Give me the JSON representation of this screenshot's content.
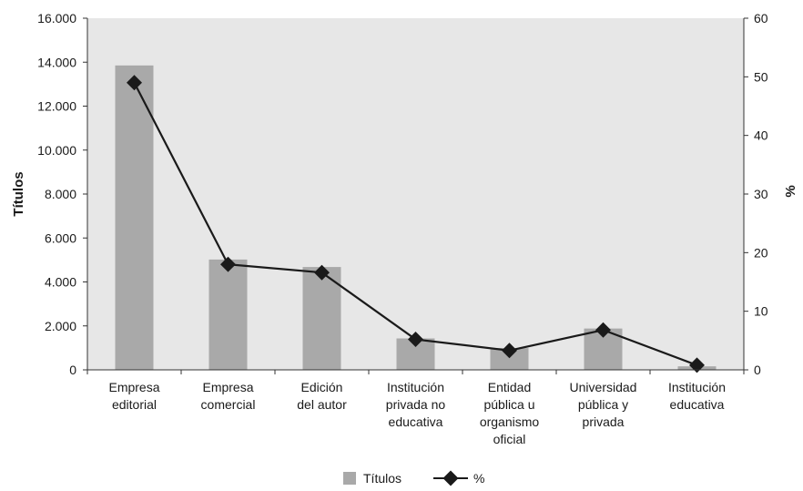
{
  "chart_data": {
    "type": "bar",
    "categories": [
      [
        "Empresa",
        "editorial"
      ],
      [
        "Empresa",
        "comercial"
      ],
      [
        "Edición",
        "del autor"
      ],
      [
        "Institución",
        "privada no",
        "educativa"
      ],
      [
        "Entidad",
        "pública u",
        "organismo",
        "oficial"
      ],
      [
        "Universidad",
        "pública y",
        "privada"
      ],
      [
        "Institución",
        "educativa"
      ]
    ],
    "series": [
      {
        "name": "Títulos",
        "type": "bar",
        "axis": "left",
        "values": [
          13850,
          5020,
          4680,
          1430,
          990,
          1880,
          160
        ]
      },
      {
        "name": "%",
        "type": "line",
        "axis": "right",
        "values": [
          49.0,
          18.0,
          16.6,
          5.2,
          3.3,
          6.8,
          0.8
        ]
      }
    ],
    "ylabel": "Títulos",
    "y2label": "%",
    "ylim": [
      0,
      16000
    ],
    "y2lim": [
      0,
      60
    ],
    "yticks": [
      "0",
      "2.000",
      "4.000",
      "6.000",
      "8.000",
      "10.000",
      "12.000",
      "14.000",
      "16.000"
    ],
    "y2ticks": [
      "0",
      "10",
      "20",
      "30",
      "40",
      "50",
      "60"
    ],
    "grid": false,
    "legend": "bottom",
    "colors": {
      "bar": "#a9a9a9",
      "line": "#1a1a1a",
      "plot_background": "#e7e7e7",
      "axis": "#333333"
    }
  }
}
